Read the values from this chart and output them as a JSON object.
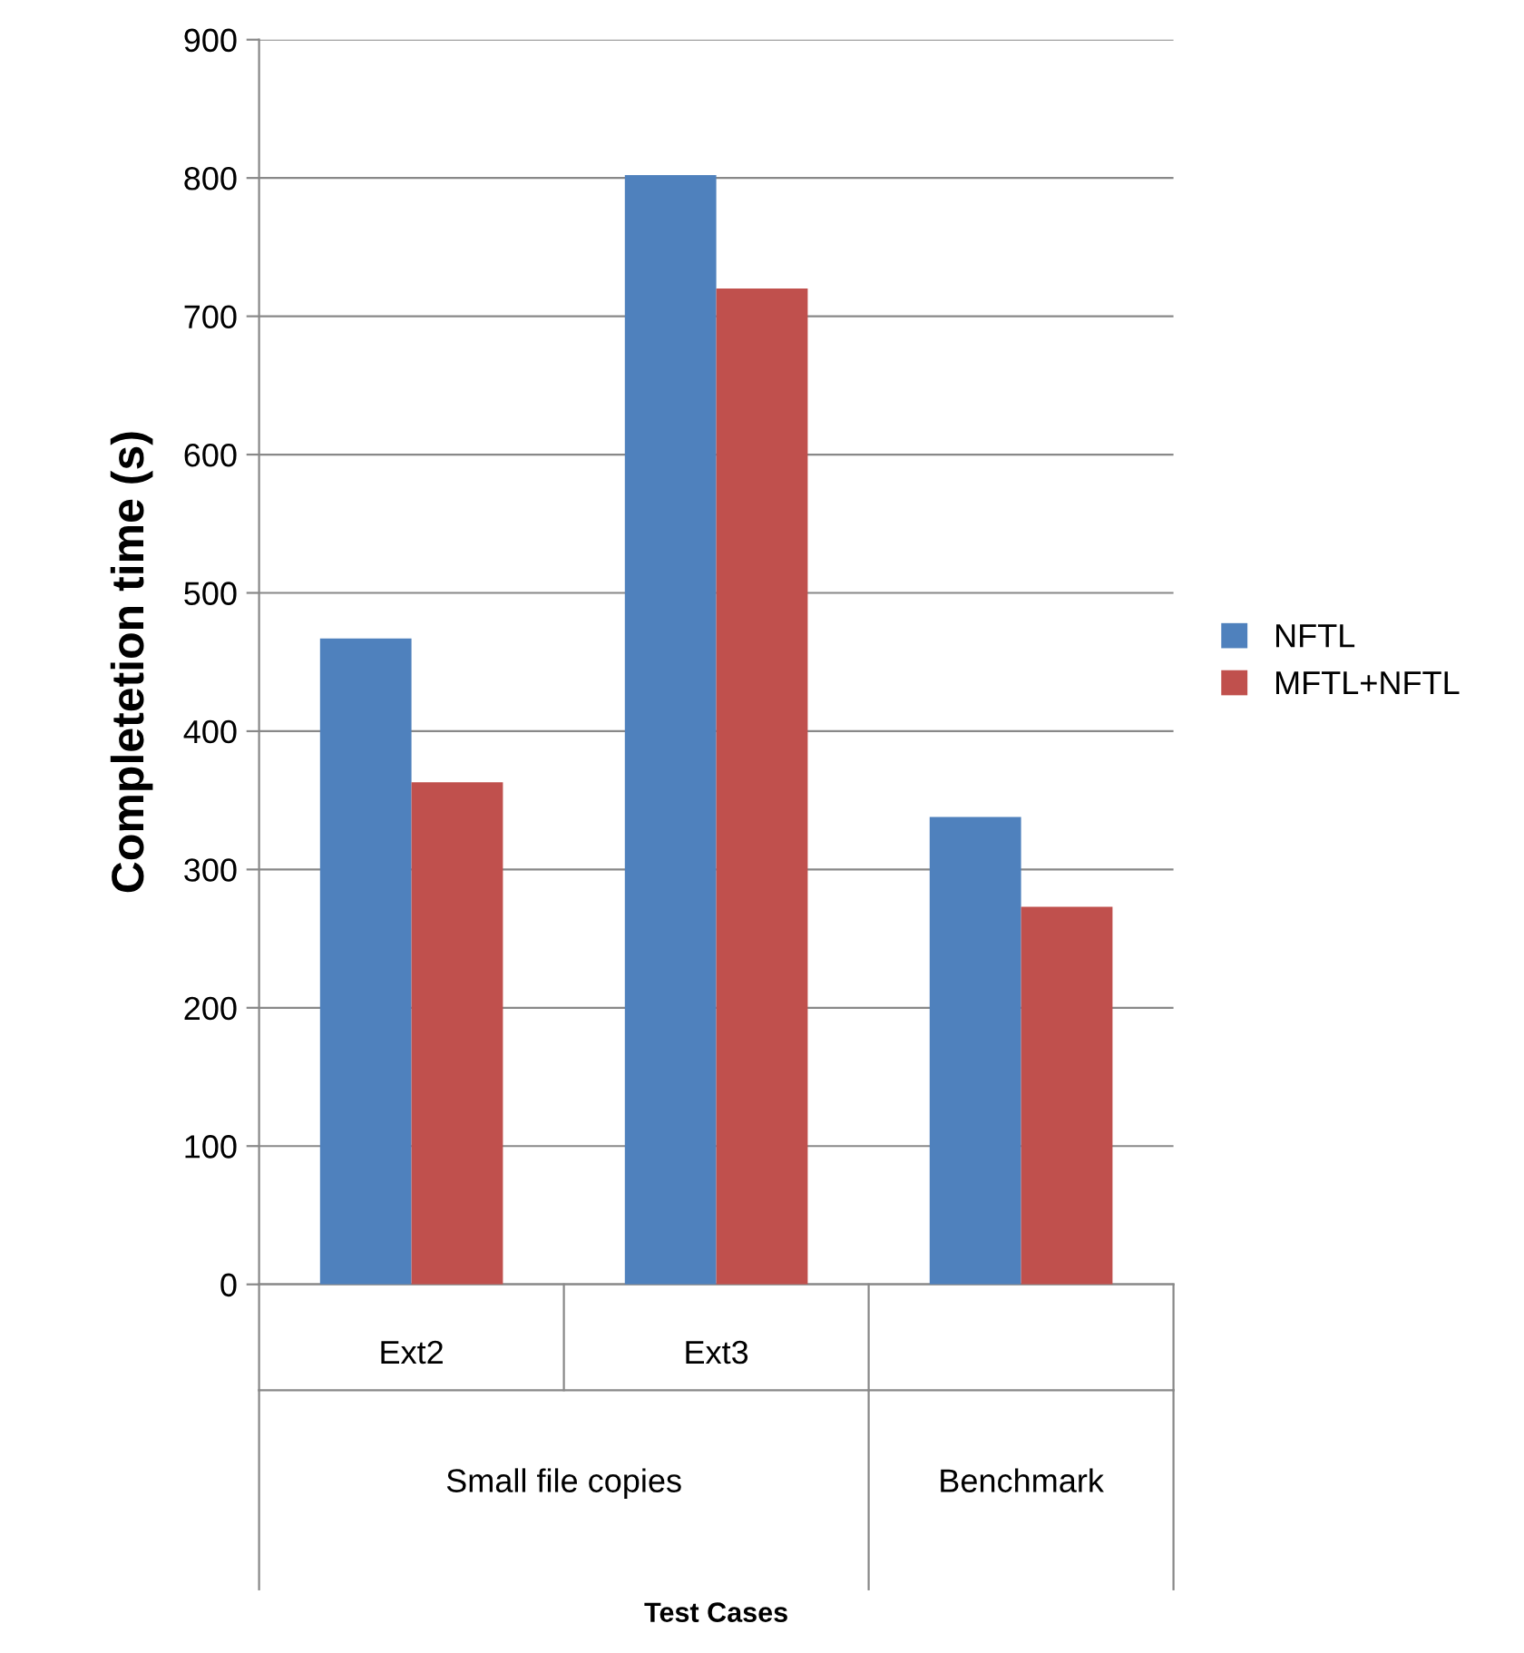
{
  "chart_data": {
    "type": "bar",
    "categories": [
      "Ext2",
      "Ext3",
      null
    ],
    "series": [
      {
        "name": "NFTL",
        "color": "#4f81bd",
        "values": [
          467,
          802,
          338
        ]
      },
      {
        "name": "MFTL+NFTL",
        "color": "#c0504d",
        "values": [
          363,
          720,
          273
        ]
      }
    ],
    "ylabel": "Completetion time (s)",
    "annotations": [
      "Small file copies",
      "Benchmark",
      "Test Cases"
    ],
    "ylim": [
      0,
      900
    ],
    "yticks": [
      0,
      100,
      200,
      300,
      400,
      500,
      600,
      700,
      800,
      900
    ],
    "grid": "y",
    "legend": "right"
  }
}
